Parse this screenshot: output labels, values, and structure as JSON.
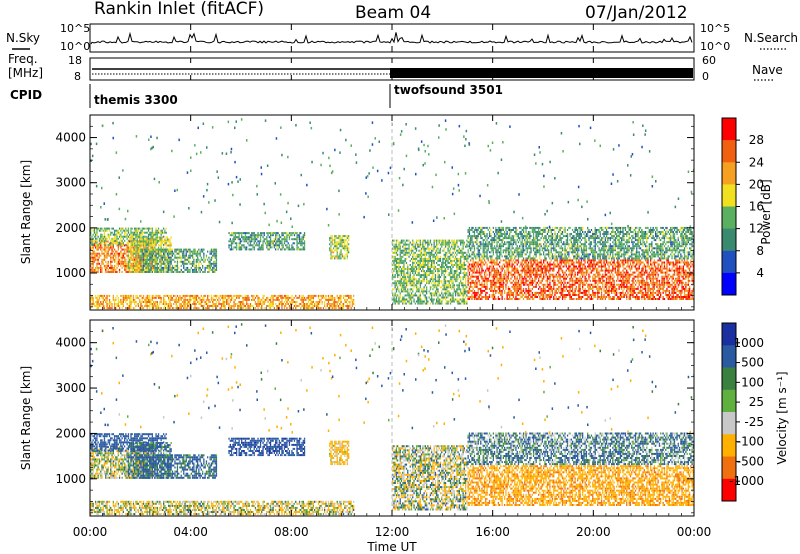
{
  "title": {
    "radar": "Rankin Inlet (fitACF)",
    "beam": "Beam 04",
    "date": "07/Jan/2012"
  },
  "nsky_panel": {
    "left_label": "N.Sky",
    "right_label": "N.Search",
    "ticks": [
      "10^5",
      "10^0"
    ]
  },
  "freq_panel": {
    "left_label_line1": "Freq.",
    "left_label_line2": "[MHz]",
    "right_label": "Nave",
    "left_ticks": [
      "18",
      "8"
    ],
    "right_ticks": [
      "60",
      "0"
    ]
  },
  "cpid_panel": {
    "label": "CPID",
    "segments": [
      {
        "name": "themis 3300",
        "start_hour": 0,
        "end_hour": 12
      },
      {
        "name": "twofsound 3501",
        "start_hour": 12,
        "end_hour": 24
      }
    ]
  },
  "x_axis": {
    "label": "Time UT",
    "ticks": [
      "00:00",
      "04:00",
      "08:00",
      "12:00",
      "16:00",
      "20:00",
      "00:00"
    ],
    "range_hours": [
      0,
      24
    ]
  },
  "power_panel": {
    "ylabel": "Slant Range [km]",
    "yticks": [
      "4000",
      "3000",
      "2000",
      "1000"
    ],
    "colorbar_label": "Power [dB]",
    "colorbar_ticks": [
      "28",
      "24",
      "20",
      "16",
      "12",
      "8",
      "4"
    ]
  },
  "velocity_panel": {
    "ylabel": "Slant Range [km]",
    "yticks": [
      "4000",
      "3000",
      "2000",
      "1000"
    ],
    "colorbar_label": "Velocity [m s⁻¹]",
    "colorbar_ticks": [
      "1000",
      "500",
      "100",
      "25",
      "-25",
      "-100",
      "-500",
      "-1000"
    ]
  },
  "colors": {
    "power_scale": [
      "#0000ff",
      "#2050c0",
      "#3a8a70",
      "#5ab060",
      "#f0e020",
      "#f5a020",
      "#f06010",
      "#ff0000"
    ],
    "velocity_scale": [
      "#1a2fa0",
      "#2a5aa0",
      "#3a8040",
      "#60b040",
      "#c8c8c8",
      "#ffb000",
      "#f07010",
      "#ff0000"
    ]
  },
  "chart_data": {
    "type": "heatmap",
    "x_range_hours": [
      0,
      24
    ],
    "y_range_km": [
      180,
      4500
    ],
    "power_colorbar_range_db": [
      0,
      30
    ],
    "velocity_colorbar_range_ms": [
      -1000,
      1000
    ],
    "echo_regions": [
      {
        "t0": 0.0,
        "t1": 2.5,
        "r0": 1000,
        "r1": 1700,
        "power": 24,
        "velocity": -50
      },
      {
        "t0": 0.0,
        "t1": 3.0,
        "r0": 1600,
        "r1": 2000,
        "power": 14,
        "velocity": 300
      },
      {
        "t0": 1.5,
        "t1": 3.2,
        "r0": 1000,
        "r1": 1800,
        "power": 18,
        "velocity": 150
      },
      {
        "t0": 2.0,
        "t1": 5.0,
        "r0": 1000,
        "r1": 1500,
        "power": 12,
        "velocity": 200
      },
      {
        "t0": 0.0,
        "t1": 10.5,
        "r0": 200,
        "r1": 500,
        "power": 22,
        "velocity": -80
      },
      {
        "t0": 5.5,
        "t1": 8.5,
        "r0": 1500,
        "r1": 1900,
        "power": 12,
        "velocity": 400
      },
      {
        "t0": 9.5,
        "t1": 10.3,
        "r0": 1300,
        "r1": 1800,
        "power": 16,
        "velocity": -200
      },
      {
        "t0": 12.0,
        "t1": 15.0,
        "r0": 300,
        "r1": 1700,
        "power": 14,
        "velocity": -30
      },
      {
        "t0": 15.0,
        "t1": 24.0,
        "r0": 400,
        "r1": 1300,
        "power": 26,
        "velocity": -400
      },
      {
        "t0": 15.0,
        "t1": 24.0,
        "r0": 1300,
        "r1": 2000,
        "power": 12,
        "velocity": 100
      }
    ]
  }
}
